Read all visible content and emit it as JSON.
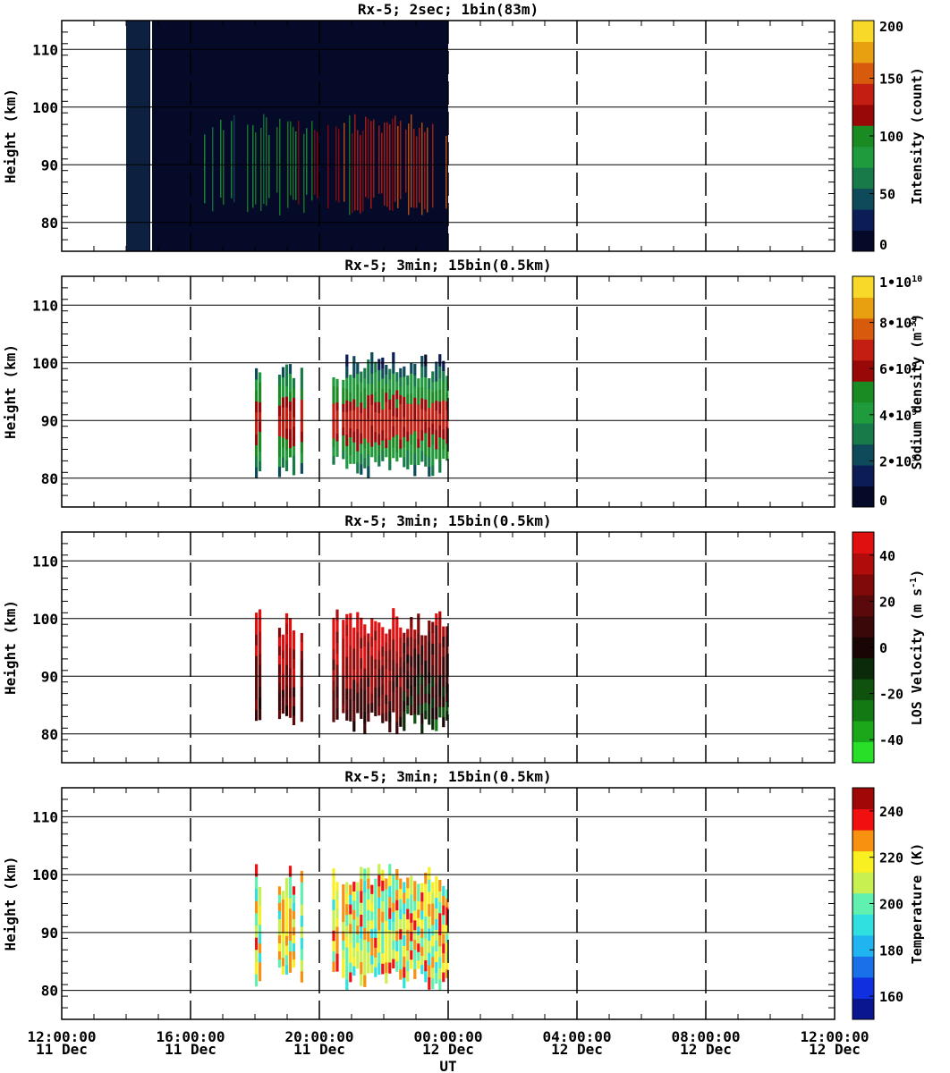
{
  "chart_data": [
    {
      "type": "heatmap",
      "title": "Rx-5;  2sec; 1bin(83m)",
      "ylabel": "Height (km)",
      "ylim": [
        75,
        115
      ],
      "yticks": [
        80,
        90,
        100,
        110
      ],
      "colorbar": {
        "label": "Intensity (count)",
        "ticks": [
          "0",
          "50",
          "100",
          "150",
          "200"
        ],
        "range": [
          0,
          200
        ],
        "colors": [
          "#050a28",
          "#0c1c54",
          "#0f4a5a",
          "#177a48",
          "#1f9a3c",
          "#1a8a22",
          "#990808",
          "#c41e12",
          "#d85a0c",
          "#e8a010",
          "#f8d828"
        ]
      },
      "data_window_ut": [
        "2018-12-11T14:00:00",
        "2018-12-12T00:00:00"
      ],
      "layers_km": [
        {
          "center": 90,
          "halfwidth": 8
        }
      ]
    },
    {
      "type": "heatmap",
      "title": "Rx-5; 3min; 15bin(0.5km)",
      "ylabel": "Height (km)",
      "ylim": [
        75,
        115
      ],
      "yticks": [
        80,
        90,
        100,
        110
      ],
      "colorbar": {
        "label": "Sodium density (m-3)",
        "ticks": [
          "0",
          "2•10^9",
          "4•10^9",
          "6•10^9",
          "8•10^9",
          "1•10^10"
        ],
        "range": [
          0,
          10000000000.0
        ],
        "colors": [
          "#050a28",
          "#0c1c54",
          "#0f4a5a",
          "#177a48",
          "#1f9a3c",
          "#1a8a22",
          "#990808",
          "#c41e12",
          "#d85a0c",
          "#e8a010",
          "#f8d828"
        ]
      },
      "data_window_ut": [
        "2018-12-11T18:00:00",
        "2018-12-12T00:00:00"
      ]
    },
    {
      "type": "heatmap",
      "title": "Rx-5; 3min; 15bin(0.5km)",
      "ylabel": "Height (km)",
      "ylim": [
        75,
        115
      ],
      "yticks": [
        80,
        90,
        100,
        110
      ],
      "colorbar": {
        "label": "LOS Velocity (m s-1)",
        "ticks": [
          "-40",
          "-20",
          "0",
          "20",
          "40"
        ],
        "range": [
          -50,
          50
        ],
        "colors": [
          "#28e028",
          "#1aa81a",
          "#137a13",
          "#0e520e",
          "#0a2a0a",
          "#1a0505",
          "#3a0808",
          "#5a0a0a",
          "#800a0a",
          "#b00c0c",
          "#e01010"
        ]
      },
      "data_window_ut": [
        "2018-12-11T18:00:00",
        "2018-12-12T00:00:00"
      ]
    },
    {
      "type": "heatmap",
      "title": "Rx-5; 3min; 15bin(0.5km)",
      "ylabel": "Height (km)",
      "ylim": [
        75,
        115
      ],
      "yticks": [
        80,
        90,
        100,
        110
      ],
      "colorbar": {
        "label": "Temperature (K)",
        "ticks": [
          "160",
          "180",
          "200",
          "220",
          "240"
        ],
        "range": [
          150,
          250
        ],
        "colors": [
          "#0a1690",
          "#1030e0",
          "#1a70e8",
          "#20b4f0",
          "#30e0e0",
          "#60f0b0",
          "#c8f050",
          "#f8f020",
          "#f89010",
          "#f01010",
          "#a00808"
        ]
      },
      "data_window_ut": [
        "2018-12-11T18:00:00",
        "2018-12-12T00:00:00"
      ]
    }
  ],
  "x_axis": {
    "label": "UT",
    "range_ut": [
      "2018-12-11T12:00:00",
      "2018-12-12T12:00:00"
    ],
    "ticks": [
      {
        "time": "12:00:00",
        "date": "11 Dec"
      },
      {
        "time": "16:00:00",
        "date": "11 Dec"
      },
      {
        "time": "20:00:00",
        "date": "11 Dec"
      },
      {
        "time": "00:00:00",
        "date": "12 Dec"
      },
      {
        "time": "04:00:00",
        "date": "12 Dec"
      },
      {
        "time": "08:00:00",
        "date": "12 Dec"
      },
      {
        "time": "12:00:00",
        "date": "12 Dec"
      }
    ]
  }
}
